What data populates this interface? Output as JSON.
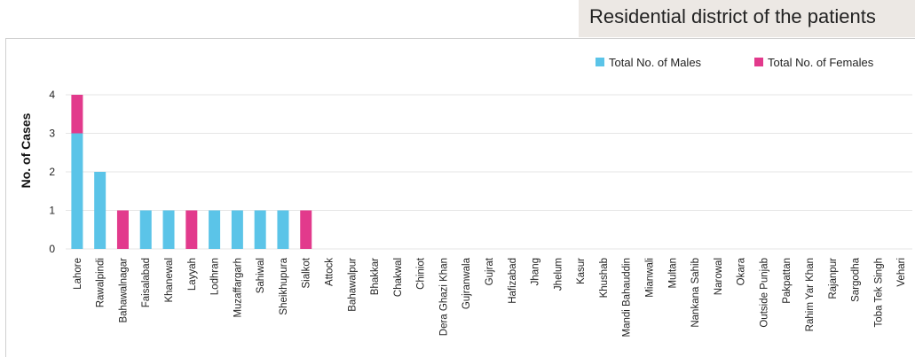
{
  "header": {
    "title": "Residential district of the patients"
  },
  "colors": {
    "males": "#5bc4e8",
    "females": "#e23a8c",
    "grid": "#e6e6e6",
    "header_bg": "#ece8e4"
  },
  "chart_data": {
    "type": "bar",
    "stacked": true,
    "title": "Residential district of the patients",
    "xlabel": "",
    "ylabel": "No. of Cases",
    "ylim": [
      0,
      4
    ],
    "yticks": [
      0,
      1,
      2,
      3,
      4
    ],
    "grid": true,
    "legend_position": "top-right",
    "categories": [
      "Lahore",
      "Rawalpindi",
      "Bahawalnagar",
      "Faisalabad",
      "Khanewal",
      "Layyah",
      "Lodhran",
      "Muzaffargarh",
      "Sahiwal",
      "Sheikhupura",
      "Sialkot",
      "Attock",
      "Bahawalpur",
      "Bhakkar",
      "Chakwal",
      "Chiniot",
      "Dera Ghazi Khan",
      "Gujranwala",
      "Gujrat",
      "Hafizabad",
      "Jhang",
      "Jhelum",
      "Kasur",
      "Khushab",
      "Mandi Bahauddin",
      "Mianwali",
      "Multan",
      "Nankana Sahib",
      "Narowal",
      "Okara",
      "Outside Punjab",
      "Pakpattan",
      "Rahim Yar Khan",
      "Rajanpur",
      "Sargodha",
      "Toba Tek Singh",
      "Vehari"
    ],
    "series": [
      {
        "name": "Total No. of Males",
        "values": [
          3,
          2,
          0,
          1,
          1,
          0,
          1,
          1,
          1,
          1,
          0,
          0,
          0,
          0,
          0,
          0,
          0,
          0,
          0,
          0,
          0,
          0,
          0,
          0,
          0,
          0,
          0,
          0,
          0,
          0,
          0,
          0,
          0,
          0,
          0,
          0,
          0
        ]
      },
      {
        "name": "Total No. of Females",
        "values": [
          1,
          0,
          1,
          0,
          0,
          1,
          0,
          0,
          0,
          0,
          1,
          0,
          0,
          0,
          0,
          0,
          0,
          0,
          0,
          0,
          0,
          0,
          0,
          0,
          0,
          0,
          0,
          0,
          0,
          0,
          0,
          0,
          0,
          0,
          0,
          0,
          0
        ]
      }
    ]
  }
}
